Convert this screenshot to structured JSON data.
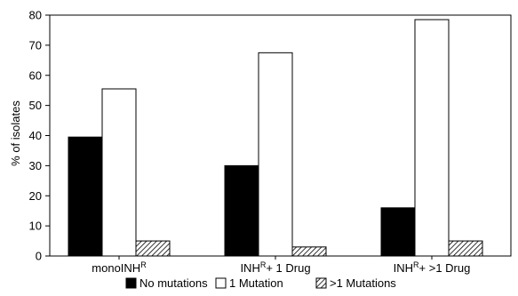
{
  "chart_data": {
    "type": "bar",
    "ylabel": "% of isolates",
    "ylim": [
      0,
      80
    ],
    "yticks": [
      0,
      10,
      20,
      30,
      40,
      50,
      60,
      70,
      80
    ],
    "categories": [
      {
        "base": "monoINH",
        "sup": "R",
        "rest": ""
      },
      {
        "base": "INH",
        "sup": "R",
        "rest": "+ 1 Drug"
      },
      {
        "base": "INH",
        "sup": "R",
        "rest": "+ >1 Drug"
      }
    ],
    "series": [
      {
        "name": "No mutations",
        "values": [
          39.5,
          30,
          16
        ],
        "fill": "solid-black"
      },
      {
        "name": "1 Mutation",
        "values": [
          55.5,
          67.5,
          78.5
        ],
        "fill": "white"
      },
      {
        "name": ">1 Mutations",
        "values": [
          5,
          3,
          5
        ],
        "fill": "hatched"
      }
    ],
    "legend_position": "bottom",
    "grid": false
  }
}
